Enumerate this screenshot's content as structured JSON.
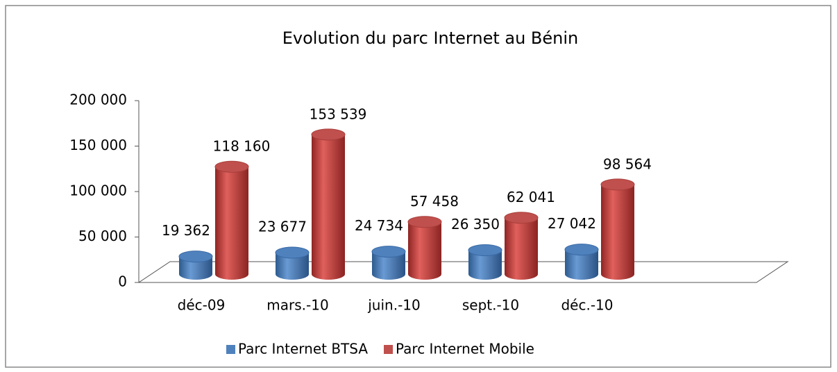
{
  "chart_data": {
    "type": "bar3d",
    "title": "Evolution du parc Internet au Bénin",
    "categories": [
      "déc-09",
      "mars.-10",
      "juin.-10",
      "sept.-10",
      "déc.-10"
    ],
    "series": [
      {
        "name": "Parc Internet BTSA",
        "color": "#4f81bd",
        "values": [
          19362,
          23677,
          24734,
          26350,
          27042
        ],
        "value_labels": [
          "19 362",
          "23 677",
          "24 734",
          "26 350",
          "27 042"
        ]
      },
      {
        "name": "Parc Internet Mobile",
        "color": "#c0504d",
        "values": [
          118160,
          153539,
          57458,
          62041,
          98564
        ],
        "value_labels": [
          "118 160",
          "153 539",
          "57 458",
          "62 041",
          "98 564"
        ]
      }
    ],
    "ylim": [
      0,
      200000
    ],
    "yticks": [
      0,
      {
        "value": 50000,
        "label": "50 000"
      },
      {
        "value": 100000,
        "label": "100 000"
      },
      {
        "value": 150000,
        "label": "150 000"
      },
      {
        "value": 200000,
        "label": "200 000"
      }
    ],
    "legend": "bottom"
  }
}
